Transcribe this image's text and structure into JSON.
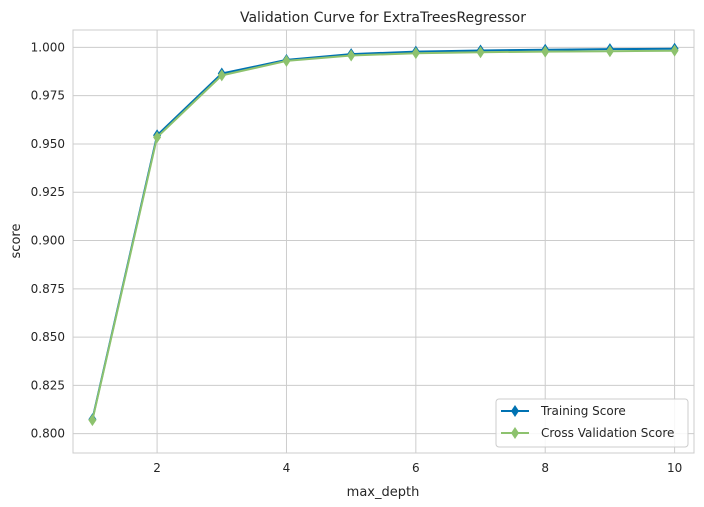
{
  "chart_data": {
    "type": "line",
    "title": "Validation Curve for ExtraTreesRegressor",
    "xlabel": "max_depth",
    "ylabel": "score",
    "xlim": [
      0.7,
      10.3
    ],
    "ylim": [
      0.79,
      1.009
    ],
    "xticks": [
      2,
      4,
      6,
      8,
      10
    ],
    "xtick_labels": [
      "2",
      "4",
      "6",
      "8",
      "10"
    ],
    "yticks": [
      0.8,
      0.825,
      0.85,
      0.875,
      0.9,
      0.925,
      0.95,
      0.975,
      1.0
    ],
    "ytick_labels": [
      "0.800",
      "0.825",
      "0.850",
      "0.875",
      "0.900",
      "0.925",
      "0.950",
      "0.975",
      "1.000"
    ],
    "grid": true,
    "legend_position": "lower-right",
    "x": [
      1,
      2,
      3,
      4,
      5,
      6,
      7,
      8,
      9,
      10
    ],
    "series": [
      {
        "name": "Training Score",
        "color": "#0072B2",
        "marker": "diamond",
        "values": [
          0.8075,
          0.9545,
          0.9865,
          0.9935,
          0.9965,
          0.9978,
          0.9984,
          0.9988,
          0.9991,
          0.9993
        ]
      },
      {
        "name": "Cross Validation Score",
        "color": "#8DC26E",
        "marker": "diamond",
        "values": [
          0.807,
          0.9535,
          0.9855,
          0.993,
          0.9958,
          0.997,
          0.9975,
          0.9978,
          0.998,
          0.9983
        ]
      }
    ]
  }
}
